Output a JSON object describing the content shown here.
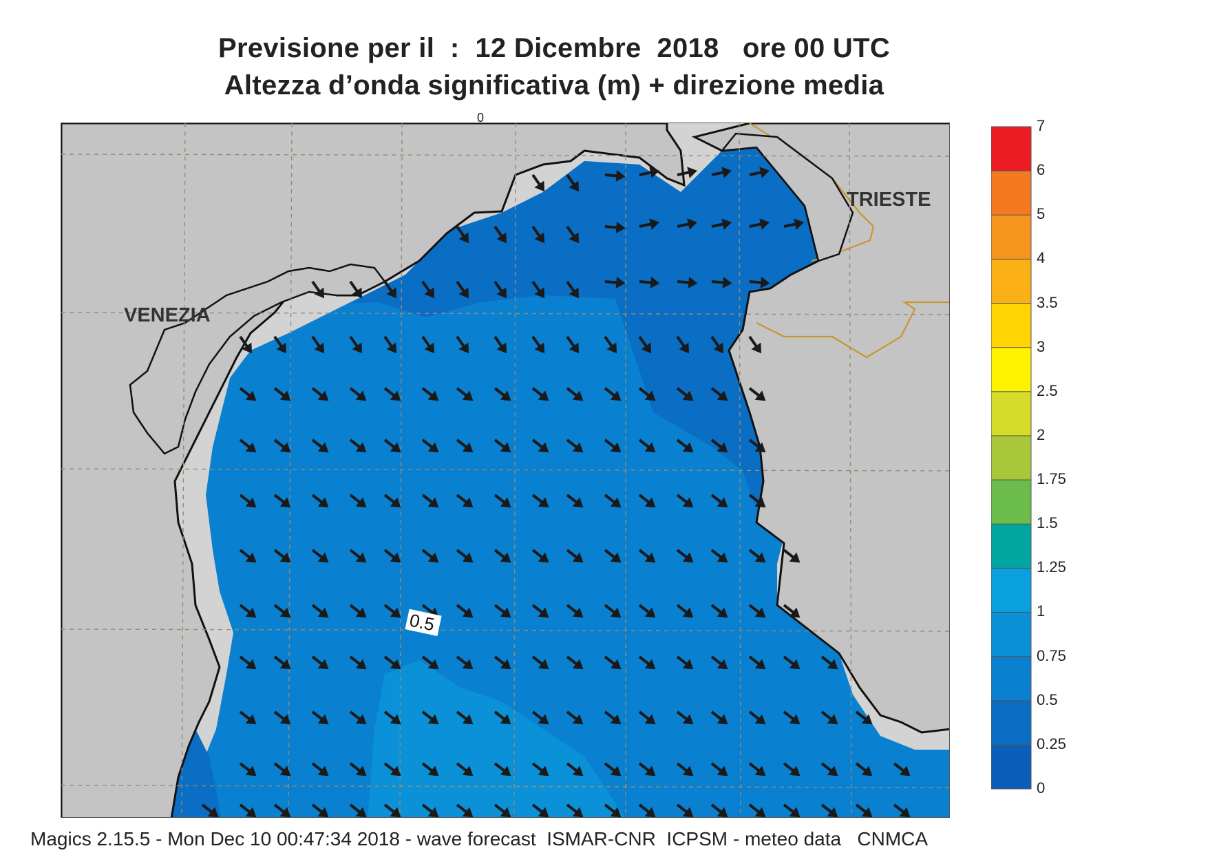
{
  "header": {
    "title_line1": "Previsione per il  :  12 Dicembre  2018   ore 00 UTC",
    "title_line2": "Altezza d’onda significativa (m) + direzione media"
  },
  "map": {
    "cities": [
      {
        "name": "VENEZIA"
      },
      {
        "name": "TRIESTE"
      }
    ],
    "contour_label": "0.5",
    "top_mark": "0",
    "land_color": "#d3d3d3",
    "coast_color": "#111111",
    "border_color": "#c8962e",
    "wave_direction_icon": "arrow-southeast-icon"
  },
  "legend": {
    "levels": [
      {
        "value": "0",
        "color": "#0a5db8"
      },
      {
        "value": "0.25",
        "color": "#0a6ec4"
      },
      {
        "value": "0.5",
        "color": "#0a81d0"
      },
      {
        "value": "0.75",
        "color": "#0a91d8"
      },
      {
        "value": "1",
        "color": "#0aa0e0"
      },
      {
        "value": "1.25",
        "color": "#00a7a0"
      },
      {
        "value": "1.5",
        "color": "#6cbc4c"
      },
      {
        "value": "1.75",
        "color": "#a8c83a"
      },
      {
        "value": "2",
        "color": "#d6dc28"
      },
      {
        "value": "2.5",
        "color": "#fff200"
      },
      {
        "value": "3",
        "color": "#ffd400"
      },
      {
        "value": "3.5",
        "color": "#fbb116"
      },
      {
        "value": "4",
        "color": "#f7941d"
      },
      {
        "value": "5",
        "color": "#f47920"
      },
      {
        "value": "6",
        "color": "#ed1c24"
      },
      {
        "value": "7",
        "color": "#ec1063"
      }
    ]
  },
  "footer": {
    "text": "Magics 2.15.5 - Mon Dec 10 00:47:34 2018 - wave forecast  ISMAR-CNR  ICPSM - meteo data   CNMCA"
  }
}
